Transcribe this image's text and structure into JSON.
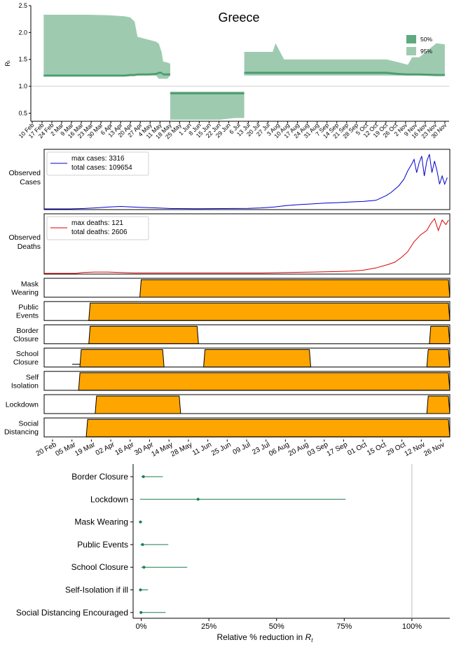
{
  "chart_data": [
    {
      "type": "area",
      "title": "Greece",
      "ylabel": "Rₜ",
      "ylim": [
        0.35,
        2.5
      ],
      "yticks": [
        "0.5",
        "1.0",
        "1.5",
        "2.0",
        "2.5"
      ],
      "reference_line": 1.0,
      "xticks": [
        "10 Feb",
        "17 Feb",
        "24 Feb",
        "2 Mar",
        "9 Mar",
        "16 Mar",
        "23 Mar",
        "30 Mar",
        "6 Apr",
        "13 Apr",
        "20 Apr",
        "27 Apr",
        "4 May",
        "11 May",
        "18 May",
        "25 May",
        "1 Jun",
        "8 Jun",
        "15 Jun",
        "22 Jun",
        "29 Jun",
        "6 Jul",
        "13 Jul",
        "20 Jul",
        "27 Jul",
        "3 Aug",
        "10 Aug",
        "17 Aug",
        "24 Aug",
        "31 Aug",
        "7 Sep",
        "14 Sep",
        "21 Sep",
        "28 Sep",
        "5 Oct",
        "12 Oct",
        "19 Oct",
        "26 Oct",
        "2 Nov",
        "9 Nov",
        "16 Nov",
        "23 Nov",
        "30 Nov"
      ],
      "legend": [
        {
          "label": "50%",
          "color": "#5fa97f"
        },
        {
          "label": "95%",
          "color": "#9ecbb0"
        }
      ],
      "legend_position": "top-right",
      "segments": [
        {
          "days": [
            9,
            11,
            20,
            40,
            55,
            66,
            70,
            73,
            75,
            82,
            88,
            90,
            92,
            93,
            96,
            98
          ],
          "median": [
            1.2,
            1.2,
            1.2,
            1.2,
            1.2,
            1.2,
            1.21,
            1.21,
            1.22,
            1.22,
            1.23,
            1.25,
            1.25,
            1.22,
            1.22,
            1.22
          ],
          "lo95": [
            1.2,
            1.2,
            1.2,
            1.2,
            1.2,
            1.2,
            1.21,
            1.21,
            1.2,
            1.2,
            1.2,
            1.14,
            1.14,
            1.14,
            1.14,
            1.2
          ],
          "hi95": [
            2.33,
            2.33,
            2.33,
            2.33,
            2.32,
            2.3,
            2.28,
            2.2,
            1.92,
            1.87,
            1.83,
            1.79,
            1.63,
            1.46,
            1.44,
            1.42
          ]
        },
        {
          "days": [
            98,
            100,
            125,
            133,
            143,
            149,
            150
          ],
          "median": [
            0.87,
            0.87,
            0.87,
            0.87,
            0.87,
            0.87,
            0.87
          ],
          "lo95": [
            0.38,
            0.38,
            0.38,
            0.38,
            0.41,
            0.41,
            0.41
          ],
          "hi95": [
            0.9,
            0.9,
            0.9,
            0.9,
            0.9,
            0.9,
            0.9
          ]
        },
        {
          "days": [
            150,
            170,
            172,
            178,
            250,
            258,
            265,
            268,
            273,
            285,
            291
          ],
          "median": [
            1.25,
            1.25,
            1.25,
            1.25,
            1.25,
            1.23,
            1.22,
            1.22,
            1.22,
            1.21,
            1.21
          ],
          "lo95": [
            1.2,
            1.2,
            1.2,
            1.2,
            1.2,
            1.2,
            1.2,
            1.2,
            1.2,
            1.2,
            1.2
          ],
          "hi95": [
            1.64,
            1.64,
            1.8,
            1.5,
            1.5,
            1.45,
            1.4,
            1.54,
            1.54,
            1.8,
            1.78
          ]
        }
      ]
    },
    {
      "type": "line",
      "series_label_lines": [
        "Observed",
        "Cases"
      ],
      "legend_lines": [
        "max cases: 3316",
        "total cases: 109654"
      ],
      "color": "#0000cc",
      "ymax": 3316,
      "points": [
        [
          0,
          0
        ],
        [
          20,
          0
        ],
        [
          30,
          20
        ],
        [
          40,
          60
        ],
        [
          50,
          110
        ],
        [
          60,
          150
        ],
        [
          70,
          110
        ],
        [
          80,
          80
        ],
        [
          90,
          50
        ],
        [
          100,
          20
        ],
        [
          120,
          12
        ],
        [
          140,
          20
        ],
        [
          160,
          30
        ],
        [
          170,
          60
        ],
        [
          180,
          110
        ],
        [
          190,
          200
        ],
        [
          200,
          260
        ],
        [
          210,
          300
        ],
        [
          220,
          350
        ],
        [
          230,
          380
        ],
        [
          240,
          420
        ],
        [
          250,
          450
        ],
        [
          260,
          520
        ],
        [
          268,
          800
        ],
        [
          272,
          1000
        ],
        [
          278,
          1400
        ],
        [
          282,
          1800
        ],
        [
          285,
          2300
        ],
        [
          288,
          2700
        ],
        [
          290,
          3000
        ],
        [
          292,
          2200
        ],
        [
          294,
          2800
        ],
        [
          296,
          3200
        ],
        [
          298,
          2000
        ],
        [
          300,
          2900
        ],
        [
          302,
          3316
        ],
        [
          304,
          2200
        ],
        [
          306,
          2900
        ],
        [
          308,
          2300
        ],
        [
          310,
          1500
        ],
        [
          312,
          2000
        ],
        [
          314,
          1500
        ],
        [
          316,
          1900
        ]
      ]
    },
    {
      "type": "line",
      "series_label_lines": [
        "Observed",
        "Deaths"
      ],
      "legend_lines": [
        "max deaths: 121",
        "total deaths: 2606"
      ],
      "color": "#dd0000",
      "ymax": 121,
      "points": [
        [
          0,
          0
        ],
        [
          25,
          0
        ],
        [
          30,
          2
        ],
        [
          40,
          3
        ],
        [
          50,
          3
        ],
        [
          60,
          2
        ],
        [
          70,
          1
        ],
        [
          90,
          1
        ],
        [
          120,
          1
        ],
        [
          150,
          1
        ],
        [
          170,
          1
        ],
        [
          190,
          2
        ],
        [
          210,
          3
        ],
        [
          230,
          4
        ],
        [
          240,
          5
        ],
        [
          250,
          7
        ],
        [
          260,
          12
        ],
        [
          270,
          20
        ],
        [
          275,
          25
        ],
        [
          280,
          35
        ],
        [
          285,
          48
        ],
        [
          290,
          70
        ],
        [
          295,
          85
        ],
        [
          300,
          95
        ],
        [
          303,
          110
        ],
        [
          306,
          121
        ],
        [
          309,
          95
        ],
        [
          312,
          118
        ],
        [
          315,
          108
        ],
        [
          317,
          118
        ]
      ]
    },
    {
      "type": "area",
      "rows": [
        {
          "label_lines": [
            "Mask",
            "Wearing"
          ],
          "segments": [
            [
              75,
              318
            ]
          ]
        },
        {
          "label_lines": [
            "Public",
            "Events"
          ],
          "segments": [
            [
              35,
              318
            ]
          ]
        },
        {
          "label_lines": [
            "Border",
            "Closure"
          ],
          "segments": [
            [
              35,
              121
            ],
            [
              302,
              318
            ]
          ]
        },
        {
          "label_lines": [
            "School",
            "Closure"
          ],
          "pre_segment": [
            22,
            28
          ],
          "segments": [
            [
              28,
              94
            ],
            [
              125,
              209
            ],
            [
              300,
              318
            ]
          ]
        },
        {
          "label_lines": [
            "Self",
            "Isolation"
          ],
          "segments": [
            [
              27,
              318
            ]
          ]
        },
        {
          "label_lines": [
            "Lockdown"
          ],
          "segments": [
            [
              40,
              107
            ],
            [
              300,
              318
            ]
          ]
        },
        {
          "label_lines": [
            "Social",
            "Distancing"
          ],
          "segments": [
            [
              33,
              318
            ]
          ]
        }
      ],
      "fill_color": "#ffa500",
      "xticks": [
        "20 Feb",
        "05 Mar",
        "19 Mar",
        "02 Apr",
        "16 Apr",
        "30 Apr",
        "14 May",
        "28 May",
        "11 Jun",
        "25 Jun",
        "09 Jul",
        "23 Jul",
        "06 Aug",
        "20 Aug",
        "03 Sep",
        "17 Sep",
        "01 Oct",
        "15 Oct",
        "29 Oct",
        "12 Nov",
        "26 Nov"
      ]
    },
    {
      "type": "scatter",
      "xlabel": "Relative  % reduction  in R",
      "xlabel_sub": "t",
      "xticks": [
        "0%",
        "25%",
        "50%",
        "75%",
        "100%"
      ],
      "xlim": [
        -3,
        114
      ],
      "reference_line": 100,
      "items": [
        {
          "label": "Border Closure",
          "value": 0.8,
          "lo": 0,
          "hi": 8
        },
        {
          "label": "Lockdown",
          "value": 21,
          "lo": -0.5,
          "hi": 75.5
        },
        {
          "label": "Mask Wearing",
          "value": -0.3,
          "lo": -0.8,
          "hi": 0.3
        },
        {
          "label": "Public Events",
          "value": 0.5,
          "lo": -0.3,
          "hi": 10
        },
        {
          "label": "School Closure",
          "value": 1,
          "lo": 0,
          "hi": 17
        },
        {
          "label": "Self-Isolation  if ill",
          "value": -0.3,
          "lo": -0.5,
          "hi": 2.5
        },
        {
          "label": "Social Distancing Encouraged",
          "value": -0.1,
          "lo": -0.5,
          "hi": 9
        }
      ],
      "marker_color": "#1b7f4f"
    }
  ]
}
